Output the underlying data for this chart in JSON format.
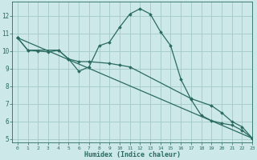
{
  "xlabel": "Humidex (Indice chaleur)",
  "bg_color": "#cce8e8",
  "grid_color": "#a8cccc",
  "line_color": "#2a6b60",
  "xlim": [
    -0.5,
    23
  ],
  "ylim": [
    4.8,
    12.8
  ],
  "yticks": [
    5,
    6,
    7,
    8,
    9,
    10,
    11,
    12
  ],
  "xticks": [
    0,
    1,
    2,
    3,
    4,
    5,
    6,
    7,
    8,
    9,
    10,
    11,
    12,
    13,
    14,
    15,
    16,
    17,
    18,
    19,
    20,
    21,
    22,
    23
  ],
  "line1_x": [
    0,
    1,
    2,
    3,
    4,
    5,
    6,
    7,
    8,
    9,
    10,
    11,
    12,
    13,
    14,
    15,
    16,
    17,
    18,
    19,
    20,
    21,
    22,
    23
  ],
  "line1_y": [
    10.75,
    10.05,
    10.0,
    9.95,
    10.05,
    9.55,
    8.85,
    9.1,
    10.3,
    10.5,
    11.35,
    12.1,
    12.4,
    12.1,
    11.1,
    10.3,
    8.4,
    7.25,
    6.35,
    6.05,
    5.9,
    5.8,
    5.5,
    5.05
  ],
  "line2_x": [
    0,
    1,
    4,
    5,
    6,
    7,
    9,
    10,
    11,
    17,
    19,
    20,
    21,
    22,
    23
  ],
  "line2_y": [
    10.75,
    10.05,
    10.05,
    9.55,
    9.4,
    9.4,
    9.3,
    9.2,
    9.1,
    7.3,
    6.9,
    6.5,
    6.0,
    5.7,
    5.05
  ],
  "line3_x": [
    0,
    23
  ],
  "line3_y": [
    10.75,
    5.05
  ]
}
